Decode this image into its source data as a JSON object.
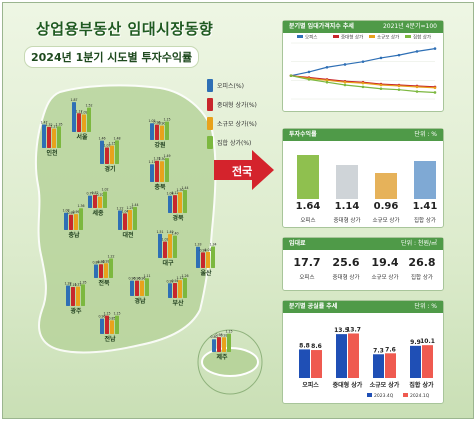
{
  "title": "상업용부동산 임대시장동향",
  "subtitle": "2024년 1분기 시도별 투자수익률",
  "arrow_label": "전국",
  "legend": [
    "오피스(%)",
    "중대형 상가(%)",
    "소규모 상가(%)",
    "집합 상가(%)"
  ],
  "colors": {
    "office": "#2e6fb5",
    "large": "#c8272c",
    "small": "#e8a21c",
    "collective": "#7cb83f"
  },
  "regions": [
    {
      "name": "인천",
      "values": [
        1.47,
        1.32,
        1.21,
        1.35
      ]
    },
    {
      "name": "서울",
      "values": [
        1.87,
        1.17,
        1.09,
        1.52
      ]
    },
    {
      "name": "강원",
      "values": [
        1.05,
        0.96,
        0.9,
        1.15
      ]
    },
    {
      "name": "경기",
      "values": [
        1.46,
        1.03,
        1.15,
        1.48
      ]
    },
    {
      "name": "충북",
      "values": [
        1.11,
        1.33,
        1.3,
        1.49
      ]
    },
    {
      "name": "세종",
      "values": [
        0.77,
        0.82,
        0.7,
        1.02
      ]
    },
    {
      "name": "경북",
      "values": [
        1.08,
        1.12,
        1.3,
        1.44
      ]
    },
    {
      "name": "충남",
      "values": [
        1.08,
        0.95,
        0.99,
        1.36
      ]
    },
    {
      "name": "대전",
      "values": [
        1.22,
        1.04,
        1.25,
        1.44
      ]
    },
    {
      "name": "대구",
      "values": [
        1.51,
        1.02,
        1.49,
        1.4
      ]
    },
    {
      "name": "울산",
      "values": [
        1.33,
        0.98,
        1.01,
        1.34
      ]
    },
    {
      "name": "전북",
      "values": [
        0.84,
        0.86,
        0.92,
        1.22
      ]
    },
    {
      "name": "경남",
      "values": [
        0.96,
        0.96,
        0.96,
        1.11
      ]
    },
    {
      "name": "부산",
      "values": [
        0.92,
        0.94,
        1.12,
        1.26
      ]
    },
    {
      "name": "광주",
      "values": [
        1.28,
        1.19,
        1.21,
        1.35
      ]
    },
    {
      "name": "전남",
      "values": [
        0.96,
        1.15,
        0.85,
        1.15
      ]
    },
    {
      "name": "제주",
      "values": [
        0.8,
        0.93,
        0.92,
        1.15
      ]
    }
  ],
  "panel_trend": {
    "title": "분기별 임대가격지수 추세",
    "note": "2021년 4분기=100"
  },
  "panel_return": {
    "title": "투자수익률",
    "unit": "단위 : %",
    "items": [
      {
        "label": "오피스",
        "value": "1.64"
      },
      {
        "label": "중대형 상가",
        "value": "1.14"
      },
      {
        "label": "소규모 상가",
        "value": "0.96"
      },
      {
        "label": "집합 상가",
        "value": "1.41"
      }
    ]
  },
  "panel_rent": {
    "title": "임대료",
    "unit": "단위 : 천원/㎡",
    "items": [
      {
        "label": "오피스",
        "value": "17.7"
      },
      {
        "label": "중대형 상가",
        "value": "25.6"
      },
      {
        "label": "소규모 상가",
        "value": "19.4"
      },
      {
        "label": "집합 상가",
        "value": "26.8"
      }
    ]
  },
  "chart_data": [
    {
      "type": "bar",
      "title": "2024년 1분기 시도별 투자수익률",
      "categories": [
        "인천",
        "서울",
        "강원",
        "경기",
        "충북",
        "세종",
        "경북",
        "충남",
        "대전",
        "대구",
        "울산",
        "전북",
        "경남",
        "부산",
        "광주",
        "전남",
        "제주"
      ],
      "series": [
        {
          "name": "오피스(%)",
          "values": [
            1.47,
            1.87,
            1.05,
            1.46,
            1.11,
            0.77,
            1.08,
            1.08,
            1.22,
            1.51,
            1.33,
            0.84,
            0.96,
            0.92,
            1.28,
            0.96,
            0.8
          ]
        },
        {
          "name": "중대형 상가(%)",
          "values": [
            1.32,
            1.17,
            0.96,
            1.03,
            1.33,
            0.82,
            1.12,
            0.95,
            1.04,
            1.02,
            0.98,
            0.86,
            0.96,
            0.94,
            1.19,
            1.15,
            0.93
          ]
        },
        {
          "name": "소규모 상가(%)",
          "values": [
            1.21,
            1.09,
            0.9,
            1.15,
            1.3,
            0.7,
            1.3,
            0.99,
            1.25,
            1.49,
            1.01,
            0.92,
            0.96,
            1.12,
            1.21,
            0.85,
            0.92
          ]
        },
        {
          "name": "집합 상가(%)",
          "values": [
            1.35,
            1.52,
            1.15,
            1.48,
            1.49,
            1.02,
            1.44,
            1.36,
            1.44,
            1.4,
            1.34,
            1.22,
            1.11,
            1.26,
            1.35,
            1.15,
            1.15
          ]
        }
      ]
    },
    {
      "type": "line",
      "title": "분기별 임대가격지수 추세",
      "series": [
        {
          "name": "오피스",
          "values": [
            100.0,
            100.4,
            100.9,
            101.2,
            101.5,
            101.9,
            102.2,
            102.6,
            102.9
          ]
        },
        {
          "name": "중대형 상가",
          "values": [
            100.0,
            99.8,
            99.6,
            99.4,
            99.3,
            99.1,
            99.0,
            98.9,
            98.8
          ]
        },
        {
          "name": "소규모 상가",
          "values": [
            100.0,
            99.7,
            99.5,
            99.3,
            99.2,
            99.0,
            98.9,
            98.8,
            98.7
          ]
        },
        {
          "name": "집합 상가",
          "values": [
            100.0,
            99.6,
            99.3,
            99.0,
            98.8,
            98.6,
            98.5,
            98.3,
            98.2
          ]
        }
      ]
    },
    {
      "type": "bar",
      "title": "분기별 공실률 추세",
      "unit": "단위 : %",
      "categories": [
        "오피스",
        "중대형 상가",
        "소규모 상가",
        "집합 상가"
      ],
      "series": [
        {
          "name": "2023.4Q",
          "values": [
            8.8,
            13.5,
            7.3,
            9.9
          ]
        },
        {
          "name": "2024.1Q",
          "values": [
            8.6,
            13.7,
            7.6,
            10.1
          ]
        }
      ],
      "colors": [
        "#1f4fb5",
        "#ef5a50"
      ]
    }
  ]
}
